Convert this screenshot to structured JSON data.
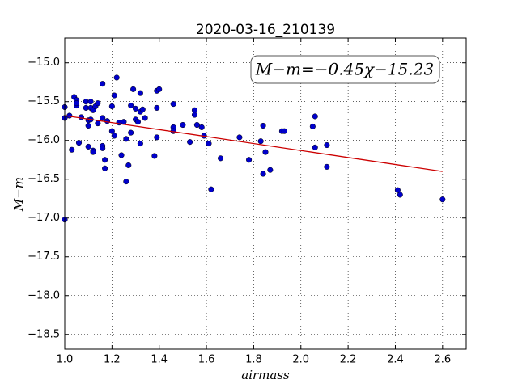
{
  "chart_data": {
    "type": "scatter",
    "title": "2020-03-16_210139",
    "x_label": "airmass",
    "y_label": "M−m",
    "annotation": "M−m=−0.45χ−15.23",
    "xlim": [
      1.0,
      2.7
    ],
    "ylim": [
      -18.69,
      -14.68
    ],
    "xticks": [
      {
        "value": 1.0,
        "label": "1.0"
      },
      1.2,
      1.4,
      1.6,
      1.8,
      {
        "value": 2.0,
        "label": "2.0"
      },
      2.2,
      2.4,
      2.6
    ],
    "yticks": [
      {
        "value": -15.0,
        "label": "−15.0"
      },
      {
        "value": -15.5,
        "label": "−15.5"
      },
      {
        "value": -16.0,
        "label": "−16.0"
      },
      {
        "value": -16.5,
        "label": "−16.5"
      },
      {
        "value": -17.0,
        "label": "−17.0"
      },
      {
        "value": -17.5,
        "label": "−17.5"
      },
      {
        "value": -18.0,
        "label": "−18.0"
      },
      {
        "value": -18.5,
        "label": "−18.5"
      }
    ],
    "grid": true,
    "points": {
      "color": "#0000cc",
      "x": [
        1.0,
        1.0,
        1.0,
        1.02,
        1.03,
        1.04,
        1.05,
        1.05,
        1.05,
        1.06,
        1.07,
        1.09,
        1.09,
        1.1,
        1.1,
        1.1,
        1.11,
        1.11,
        1.11,
        1.12,
        1.12,
        1.12,
        1.13,
        1.14,
        1.14,
        1.16,
        1.16,
        1.16,
        1.16,
        1.17,
        1.17,
        1.18,
        1.2,
        1.2,
        1.21,
        1.21,
        1.22,
        1.23,
        1.24,
        1.25,
        1.26,
        1.26,
        1.27,
        1.28,
        1.28,
        1.29,
        1.3,
        1.3,
        1.31,
        1.32,
        1.32,
        1.32,
        1.33,
        1.34,
        1.38,
        1.39,
        1.39,
        1.39,
        1.4,
        1.46,
        1.46,
        1.46,
        1.5,
        1.53,
        1.55,
        1.55,
        1.56,
        1.58,
        1.59,
        1.61,
        1.62,
        1.66,
        1.74,
        1.78,
        1.83,
        1.84,
        1.84,
        1.85,
        1.87,
        1.92,
        1.93,
        2.05,
        2.06,
        2.06,
        2.11,
        2.11,
        2.41,
        2.42,
        2.6
      ],
      "values": [
        -15.57,
        -15.71,
        -17.02,
        -15.68,
        -16.12,
        -15.44,
        -15.48,
        -15.55,
        -15.52,
        -16.03,
        -15.7,
        -15.5,
        -15.58,
        -15.74,
        -15.81,
        -16.08,
        -15.58,
        -15.5,
        -15.73,
        -16.13,
        -16.15,
        -15.61,
        -15.56,
        -15.78,
        -15.52,
        -15.27,
        -15.71,
        -16.07,
        -16.1,
        -16.25,
        -16.36,
        -15.75,
        -15.56,
        -15.88,
        -15.42,
        -15.94,
        -15.19,
        -15.77,
        -16.19,
        -15.76,
        -16.53,
        -15.98,
        -16.32,
        -15.9,
        -15.55,
        -15.34,
        -15.59,
        -15.73,
        -15.76,
        -15.39,
        -16.04,
        -15.63,
        -15.6,
        -15.71,
        -16.2,
        -15.36,
        -15.58,
        -15.96,
        -15.34,
        -15.53,
        -15.83,
        -15.88,
        -15.8,
        -16.02,
        -15.61,
        -15.67,
        -15.8,
        -15.83,
        -15.94,
        -16.04,
        -16.63,
        -16.23,
        -15.96,
        -16.25,
        -16.01,
        -15.81,
        -16.43,
        -16.15,
        -16.38,
        -15.88,
        -15.88,
        -15.82,
        -15.69,
        -16.09,
        -16.06,
        -16.34,
        -16.64,
        -16.7,
        -16.76
      ]
    },
    "fit": {
      "color": "#cc0000",
      "x": [
        1.0,
        2.6
      ],
      "values": [
        -15.68,
        -16.4
      ]
    }
  }
}
